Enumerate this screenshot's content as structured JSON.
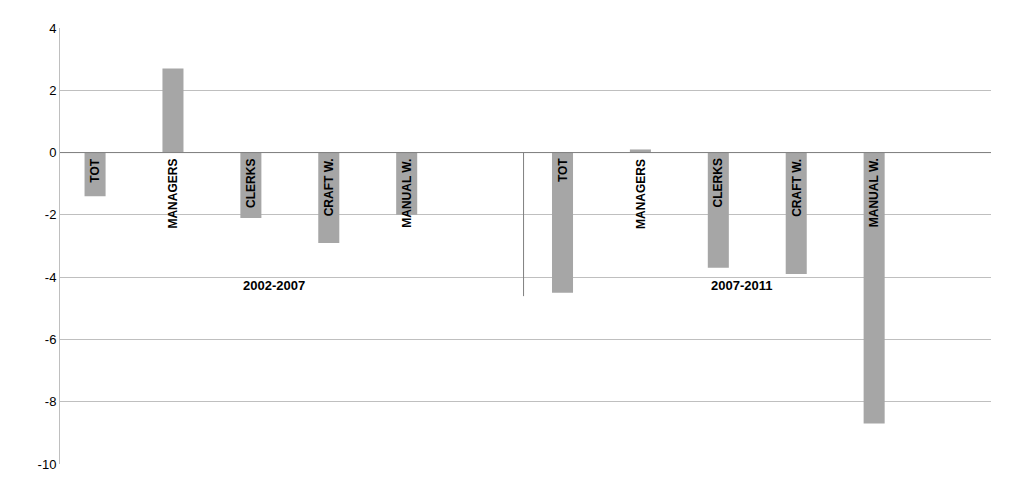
{
  "chart_data": {
    "type": "bar",
    "groups": [
      {
        "label": "2002-2007",
        "categories": [
          "TOT",
          "MANAGERS",
          "CLERKS",
          "CRAFT W.",
          "MANUAL W."
        ],
        "values": [
          -1.4,
          2.7,
          -2.1,
          -2.9,
          -2.0
        ]
      },
      {
        "label": "2007-2011",
        "categories": [
          "TOT",
          "MANAGERS",
          "CLERKS",
          "CRAFT W.",
          "MANUAL W."
        ],
        "values": [
          -4.5,
          0.1,
          -3.7,
          -3.9,
          -8.7
        ]
      }
    ],
    "color": "#a6a6a6",
    "ylim": [
      -10,
      4
    ],
    "yticks": [
      -10,
      -8,
      -6,
      -4,
      -2,
      0,
      2,
      4
    ],
    "grid": true,
    "tick_labels": "y"
  }
}
